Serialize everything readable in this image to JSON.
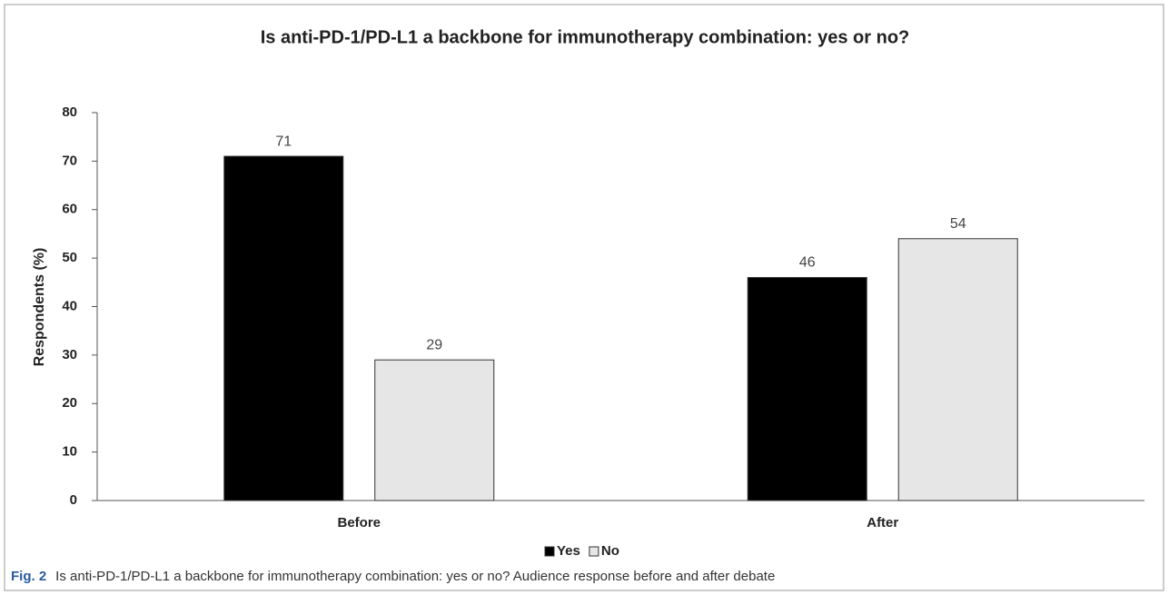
{
  "chart_data": {
    "type": "bar",
    "title": "Is anti-PD-1/PD-L1 a backbone for immunotherapy combination: yes or no?",
    "ylabel": "Respondents (%)",
    "categories": [
      "Before",
      "After"
    ],
    "series": [
      {
        "name": "Yes",
        "color": "#000000",
        "values": [
          71,
          46
        ]
      },
      {
        "name": "No",
        "color": "#e6e6e6",
        "values": [
          29,
          54
        ]
      }
    ],
    "ylim": [
      0,
      80
    ],
    "yticks": [
      0,
      10,
      20,
      30,
      40,
      50,
      60,
      70,
      80
    ],
    "grid": false,
    "legend": "bottom"
  },
  "caption": {
    "label": "Fig. 2",
    "text": "Is anti-PD-1/PD-L1 a backbone for immunotherapy combination: yes or no? Audience response before and after debate"
  }
}
